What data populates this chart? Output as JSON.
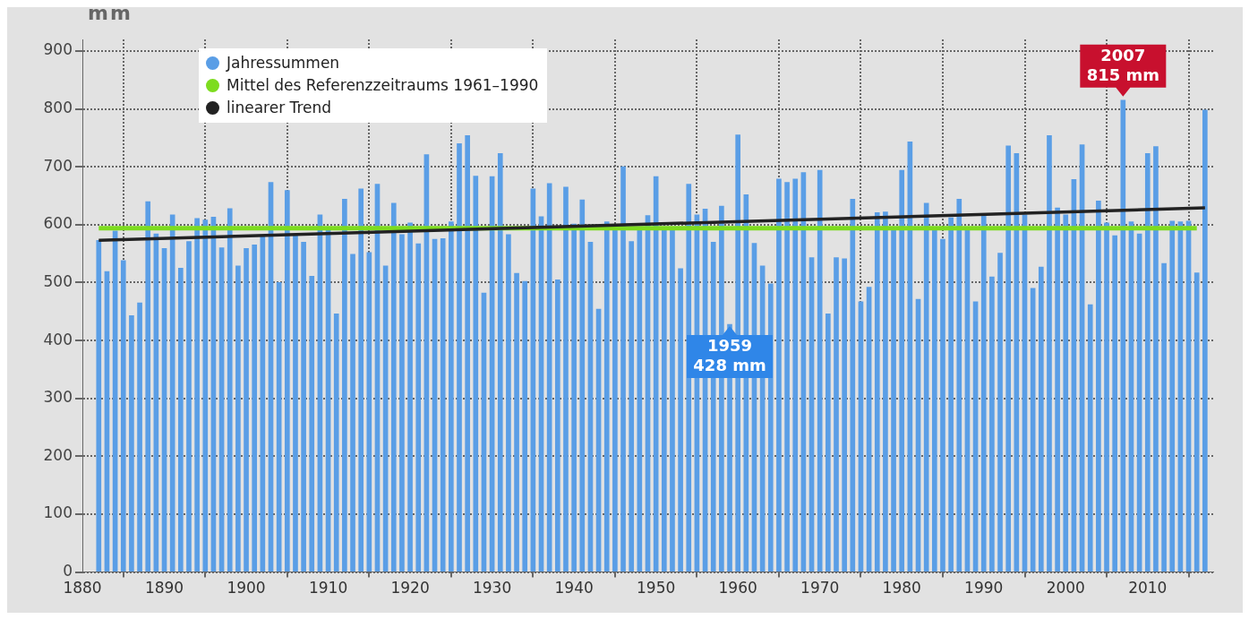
{
  "chart_data": {
    "type": "bar",
    "ylabel": "mm",
    "x": [
      1882,
      1883,
      1884,
      1885,
      1886,
      1887,
      1888,
      1889,
      1890,
      1891,
      1892,
      1893,
      1894,
      1895,
      1896,
      1897,
      1898,
      1899,
      1900,
      1901,
      1902,
      1903,
      1904,
      1905,
      1906,
      1907,
      1908,
      1909,
      1910,
      1911,
      1912,
      1913,
      1914,
      1915,
      1916,
      1917,
      1918,
      1919,
      1920,
      1921,
      1922,
      1923,
      1924,
      1925,
      1926,
      1927,
      1928,
      1929,
      1930,
      1931,
      1932,
      1933,
      1934,
      1935,
      1936,
      1937,
      1938,
      1939,
      1940,
      1941,
      1942,
      1943,
      1944,
      1945,
      1946,
      1947,
      1948,
      1949,
      1950,
      1951,
      1952,
      1953,
      1954,
      1955,
      1956,
      1957,
      1958,
      1959,
      1960,
      1961,
      1962,
      1963,
      1964,
      1965,
      1966,
      1967,
      1968,
      1969,
      1970,
      1971,
      1972,
      1973,
      1974,
      1975,
      1976,
      1977,
      1978,
      1979,
      1980,
      1981,
      1982,
      1983,
      1984,
      1985,
      1986,
      1987,
      1988,
      1989,
      1990,
      1991,
      1992,
      1993,
      1994,
      1995,
      1996,
      1997,
      1998,
      1999,
      2000,
      2001,
      2002,
      2003,
      2004,
      2005,
      2006,
      2007,
      2008,
      2009,
      2010,
      2011,
      2012,
      2013,
      2014,
      2015,
      2016,
      2017
    ],
    "series": [
      {
        "name": "Jahressummen",
        "color": "#5a9ee6",
        "values": [
          573,
          519,
          589,
          538,
          443,
          465,
          640,
          584,
          559,
          617,
          525,
          571,
          611,
          608,
          613,
          560,
          628,
          529,
          559,
          565,
          581,
          673,
          500,
          659,
          581,
          570,
          511,
          617,
          590,
          446,
          644,
          549,
          662,
          552,
          670,
          529,
          637,
          583,
          603,
          567,
          721,
          575,
          576,
          605,
          740,
          754,
          684,
          482,
          683,
          723,
          583,
          516,
          502,
          662,
          614,
          671,
          505,
          665,
          601,
          643,
          570,
          454,
          605,
          595,
          700,
          571,
          595,
          616,
          683,
          595,
          595,
          524,
          670,
          617,
          627,
          570,
          632,
          428,
          755,
          652,
          568,
          529,
          498,
          679,
          673,
          679,
          690,
          543,
          694,
          446,
          543,
          541,
          644,
          467,
          492,
          621,
          622,
          595,
          694,
          743,
          471,
          637,
          595,
          575,
          612,
          644,
          595,
          467,
          617,
          510,
          551,
          736,
          723,
          617,
          490,
          527,
          754,
          629,
          617,
          678,
          738,
          462,
          641,
          603,
          581,
          815,
          605,
          584,
          723,
          735,
          533,
          606,
          605,
          606,
          517,
          798
        ]
      },
      {
        "name": "Mittel des Referenzzeitraums 1961–1990",
        "type": "line",
        "color": "#7ddc1f",
        "x": [
          1882,
          2016
        ],
        "values": [
          594,
          594
        ]
      },
      {
        "name": "linearer Trend",
        "type": "line",
        "color": "#222222",
        "x": [
          1882,
          2017
        ],
        "values": [
          573,
          629
        ]
      }
    ],
    "xlim": [
      1880,
      2018
    ],
    "xticks": [
      1880,
      1890,
      1900,
      1910,
      1920,
      1930,
      1940,
      1950,
      1960,
      1970,
      1980,
      1990,
      2000,
      2010
    ],
    "ylim": [
      0,
      920
    ],
    "yticks": [
      0,
      100,
      200,
      300,
      400,
      500,
      600,
      700,
      800,
      900
    ],
    "grid": true,
    "legend": "top left",
    "annotations": [
      {
        "text": "2007\n815 mm",
        "x": 2007,
        "y": 815
      },
      {
        "text": "1959\n428 mm",
        "x": 1959,
        "y": 428
      }
    ]
  }
}
